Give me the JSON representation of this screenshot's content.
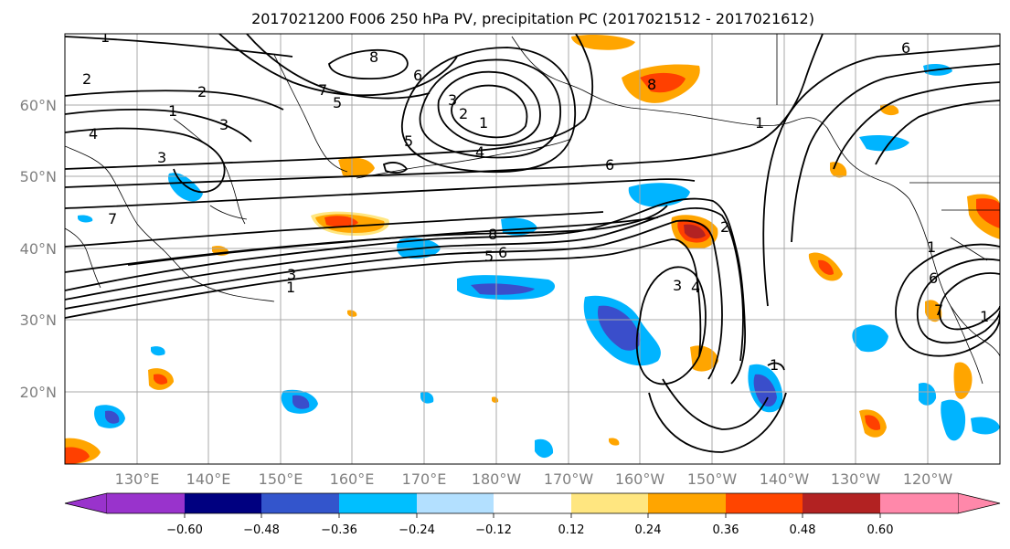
{
  "title": "2017021200 F006 250 hPa PV, precipitation PC (2017021512 - 2017021612)",
  "map": {
    "lat_labels": [
      "60°N",
      "50°N",
      "40°N",
      "30°N",
      "20°N"
    ],
    "lon_labels": [
      "130°E",
      "140°E",
      "150°E",
      "160°E",
      "170°E",
      "180°W",
      "170°W",
      "160°W",
      "150°W",
      "140°W",
      "130°W",
      "120°W"
    ],
    "contour_labels": [
      "1",
      "2",
      "3",
      "4",
      "5",
      "6",
      "7",
      "8"
    ],
    "fill_colors": {
      "neg_strong": "#3a4ecb",
      "neg_medium": "#00b4ff",
      "neg_light": "#b3e0ff",
      "pos_light": "#ffe680",
      "pos_medium": "#ffa500",
      "pos_strong": "#ff4000",
      "pos_max": "#b22222"
    }
  },
  "colorbar": {
    "colors": [
      "#9933cc",
      "#000080",
      "#3355cc",
      "#00bfff",
      "#b3e0ff",
      "#ffffff",
      "#ffe680",
      "#ffa500",
      "#ff4500",
      "#b22222",
      "#ff88aa"
    ],
    "tick_labels": [
      "−0.60",
      "−0.48",
      "−0.36",
      "−0.24",
      "−0.12",
      "0.12",
      "0.24",
      "0.36",
      "0.48",
      "0.60"
    ]
  }
}
